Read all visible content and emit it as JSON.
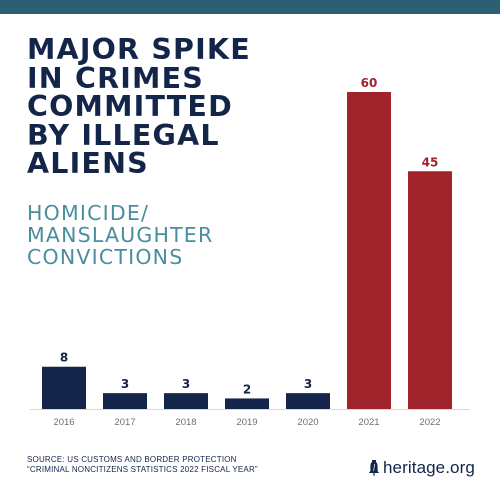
{
  "colors": {
    "top_bar": "#2c5f74",
    "headline": "#14254a",
    "subhead": "#4a8e9e",
    "bar_navy": "#14254a",
    "bar_red": "#a1242c",
    "axis_text": "#6f6f6f"
  },
  "headline_lines": [
    "MAJOR SPIKE",
    "IN CRIMES",
    "COMMITTED",
    "BY ILLEGAL",
    "ALIENS"
  ],
  "subhead_lines": [
    "HOMICIDE/",
    "MANSLAUGHTER",
    "CONVICTIONS"
  ],
  "chart_data": {
    "type": "bar",
    "title": "MAJOR SPIKE IN CRIMES COMMITTED BY ILLEGAL ALIENS",
    "subtitle": "HOMICIDE/ MANSLAUGHTER CONVICTIONS",
    "xlabel": "",
    "ylabel": "",
    "categories": [
      "2016",
      "2017",
      "2018",
      "2019",
      "2020",
      "2021",
      "2022"
    ],
    "values": [
      8,
      3,
      3,
      2,
      3,
      60,
      45
    ],
    "highlight_categories": [
      "2021",
      "2022"
    ],
    "data_labels": true,
    "grid": false,
    "legend": "none",
    "ylim": [
      0,
      60
    ]
  },
  "source_lines": [
    "SOURCE: US CUSTOMS AND BORDER PROTECTION",
    "“CRIMINAL NONCITIZENS STATISTICS 2022 FISCAL YEAR”"
  ],
  "brand": {
    "name": "heritage.org",
    "logo_icon": "liberty-bell-icon"
  }
}
